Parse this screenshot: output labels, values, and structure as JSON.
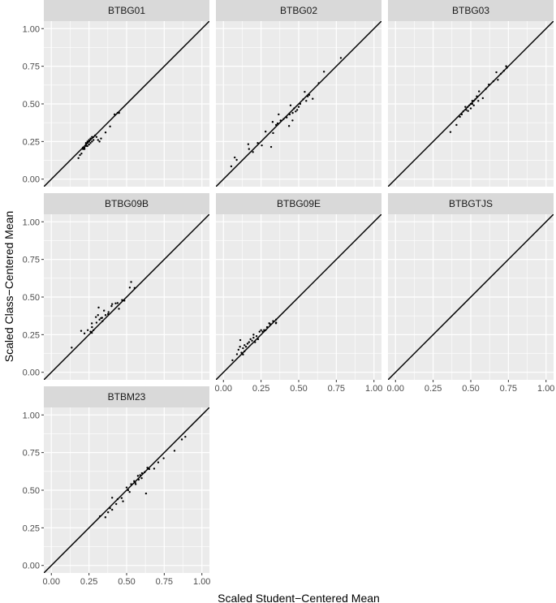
{
  "chart_data": {
    "type": "scatter",
    "xlabel": "Scaled Student−Centered Mean",
    "ylabel": "Scaled Class−Centered Mean",
    "xlim": [
      -0.05,
      1.05
    ],
    "ylim": [
      -0.05,
      1.05
    ],
    "ticks": [
      "0.00",
      "0.25",
      "0.50",
      "0.75",
      "1.00"
    ],
    "tick_values": [
      0,
      0.25,
      0.5,
      0.75,
      1
    ],
    "grid": true,
    "reference_line": "y = x",
    "colors": {
      "panel": "#EBEBEB",
      "strip": "#D9D9D9",
      "grid": "#FFFFFF",
      "point": "#000000",
      "tick_text": "#4D4D4D"
    },
    "panels": [
      {
        "name": "BTBG01",
        "points": [
          [
            0.18,
            0.14
          ],
          [
            0.19,
            0.16
          ],
          [
            0.2,
            0.17
          ],
          [
            0.21,
            0.2
          ],
          [
            0.22,
            0.21
          ],
          [
            0.23,
            0.22
          ],
          [
            0.23,
            0.23
          ],
          [
            0.24,
            0.24
          ],
          [
            0.24,
            0.22
          ],
          [
            0.25,
            0.25
          ],
          [
            0.25,
            0.26
          ],
          [
            0.26,
            0.27
          ],
          [
            0.26,
            0.24
          ],
          [
            0.27,
            0.28
          ],
          [
            0.28,
            0.26
          ],
          [
            0.29,
            0.29
          ],
          [
            0.3,
            0.28
          ],
          [
            0.31,
            0.26
          ],
          [
            0.32,
            0.25
          ],
          [
            0.33,
            0.27
          ],
          [
            0.36,
            0.31
          ],
          [
            0.39,
            0.35
          ],
          [
            0.42,
            0.43
          ],
          [
            0.44,
            0.44
          ],
          [
            0.45,
            0.44
          ],
          [
            0.22,
            0.2
          ],
          [
            0.24,
            0.25
          ],
          [
            0.27,
            0.25
          ],
          [
            0.28,
            0.28
          ],
          [
            0.21,
            0.21
          ],
          [
            0.25,
            0.23
          ],
          [
            0.23,
            0.24
          ]
        ]
      },
      {
        "name": "BTBG02",
        "points": [
          [
            0.78,
            0.805
          ],
          [
            0.668,
            0.714
          ],
          [
            0.633,
            0.638
          ],
          [
            0.54,
            0.58
          ],
          [
            0.593,
            0.534
          ],
          [
            0.446,
            0.49
          ],
          [
            0.367,
            0.43
          ],
          [
            0.327,
            0.38
          ],
          [
            0.436,
            0.353
          ],
          [
            0.459,
            0.39
          ],
          [
            0.28,
            0.316
          ],
          [
            0.33,
            0.306
          ],
          [
            0.165,
            0.232
          ],
          [
            0.228,
            0.24
          ],
          [
            0.255,
            0.224
          ],
          [
            0.317,
            0.214
          ],
          [
            0.196,
            0.18
          ],
          [
            0.17,
            0.2
          ],
          [
            0.075,
            0.144
          ],
          [
            0.088,
            0.128
          ],
          [
            0.052,
            0.085
          ],
          [
            0.47,
            0.47
          ],
          [
            0.49,
            0.46
          ],
          [
            0.5,
            0.48
          ],
          [
            0.48,
            0.45
          ],
          [
            0.51,
            0.5
          ],
          [
            0.46,
            0.44
          ],
          [
            0.44,
            0.43
          ],
          [
            0.42,
            0.41
          ],
          [
            0.4,
            0.4
          ],
          [
            0.38,
            0.39
          ],
          [
            0.36,
            0.37
          ],
          [
            0.35,
            0.36
          ],
          [
            0.55,
            0.52
          ],
          [
            0.56,
            0.55
          ],
          [
            0.53,
            0.53
          ],
          [
            0.57,
            0.56
          ]
        ]
      },
      {
        "name": "BTBG03",
        "points": [
          [
            0.365,
            0.313
          ],
          [
            0.405,
            0.36
          ],
          [
            0.428,
            0.414
          ],
          [
            0.464,
            0.48
          ],
          [
            0.482,
            0.453
          ],
          [
            0.51,
            0.52
          ],
          [
            0.555,
            0.583
          ],
          [
            0.58,
            0.538
          ],
          [
            0.62,
            0.628
          ],
          [
            0.67,
            0.71
          ],
          [
            0.68,
            0.66
          ],
          [
            0.735,
            0.75
          ],
          [
            0.49,
            0.49
          ],
          [
            0.5,
            0.5
          ],
          [
            0.51,
            0.5
          ],
          [
            0.52,
            0.52
          ],
          [
            0.53,
            0.53
          ],
          [
            0.5,
            0.47
          ],
          [
            0.48,
            0.48
          ],
          [
            0.47,
            0.46
          ],
          [
            0.52,
            0.49
          ],
          [
            0.54,
            0.55
          ],
          [
            0.55,
            0.52
          ],
          [
            0.44,
            0.43
          ],
          [
            0.45,
            0.45
          ],
          [
            0.6,
            0.6
          ],
          [
            0.65,
            0.65
          ],
          [
            0.7,
            0.7
          ],
          [
            0.72,
            0.72
          ],
          [
            0.74,
            0.74
          ]
        ]
      },
      {
        "name": "BTBG09B",
        "points": [
          [
            0.135,
            0.164
          ],
          [
            0.198,
            0.275
          ],
          [
            0.22,
            0.258
          ],
          [
            0.242,
            0.28
          ],
          [
            0.269,
            0.325
          ],
          [
            0.269,
            0.262
          ],
          [
            0.296,
            0.367
          ],
          [
            0.314,
            0.43
          ],
          [
            0.337,
            0.362
          ],
          [
            0.35,
            0.41
          ],
          [
            0.377,
            0.387
          ],
          [
            0.404,
            0.453
          ],
          [
            0.427,
            0.458
          ],
          [
            0.449,
            0.422
          ],
          [
            0.485,
            0.476
          ],
          [
            0.521,
            0.563
          ],
          [
            0.53,
            0.6
          ],
          [
            0.553,
            0.56
          ],
          [
            0.3,
            0.33
          ],
          [
            0.32,
            0.35
          ],
          [
            0.33,
            0.36
          ],
          [
            0.36,
            0.38
          ],
          [
            0.38,
            0.4
          ],
          [
            0.27,
            0.3
          ],
          [
            0.28,
            0.28
          ],
          [
            0.26,
            0.27
          ],
          [
            0.4,
            0.44
          ],
          [
            0.44,
            0.46
          ],
          [
            0.47,
            0.48
          ],
          [
            0.34,
            0.34
          ],
          [
            0.31,
            0.38
          ]
        ]
      },
      {
        "name": "BTBG09E",
        "points": [
          [
            0.112,
            0.214
          ],
          [
            0.13,
            0.118
          ],
          [
            0.349,
            0.326
          ],
          [
            0.304,
            0.326
          ],
          [
            0.1,
            0.15
          ],
          [
            0.11,
            0.17
          ],
          [
            0.12,
            0.13
          ],
          [
            0.13,
            0.16
          ],
          [
            0.14,
            0.18
          ],
          [
            0.15,
            0.17
          ],
          [
            0.16,
            0.19
          ],
          [
            0.17,
            0.2
          ],
          [
            0.18,
            0.22
          ],
          [
            0.19,
            0.21
          ],
          [
            0.2,
            0.23
          ],
          [
            0.21,
            0.2
          ],
          [
            0.22,
            0.24
          ],
          [
            0.23,
            0.22
          ],
          [
            0.24,
            0.27
          ],
          [
            0.25,
            0.28
          ],
          [
            0.26,
            0.27
          ],
          [
            0.27,
            0.28
          ],
          [
            0.28,
            0.28
          ],
          [
            0.29,
            0.3
          ],
          [
            0.31,
            0.32
          ],
          [
            0.33,
            0.34
          ],
          [
            0.35,
            0.33
          ],
          [
            0.35,
            0.35
          ],
          [
            0.06,
            0.08
          ],
          [
            0.09,
            0.12
          ],
          [
            0.14,
            0.14
          ],
          [
            0.2,
            0.25
          ]
        ]
      },
      {
        "name": "BTBGTJS",
        "points": []
      },
      {
        "name": "BTBM23",
        "points": [
          [
            0.323,
            0.327
          ],
          [
            0.359,
            0.32
          ],
          [
            0.377,
            0.353
          ],
          [
            0.404,
            0.37
          ],
          [
            0.404,
            0.45
          ],
          [
            0.431,
            0.408
          ],
          [
            0.476,
            0.426
          ],
          [
            0.467,
            0.448
          ],
          [
            0.5,
            0.518
          ],
          [
            0.52,
            0.488
          ],
          [
            0.557,
            0.55
          ],
          [
            0.575,
            0.595
          ],
          [
            0.602,
            0.613
          ],
          [
            0.629,
            0.478
          ],
          [
            0.638,
            0.649
          ],
          [
            0.683,
            0.643
          ],
          [
            0.71,
            0.685
          ],
          [
            0.746,
            0.712
          ],
          [
            0.818,
            0.762
          ],
          [
            0.867,
            0.837
          ],
          [
            0.89,
            0.855
          ],
          [
            0.55,
            0.56
          ],
          [
            0.56,
            0.54
          ],
          [
            0.58,
            0.57
          ],
          [
            0.59,
            0.6
          ],
          [
            0.6,
            0.58
          ],
          [
            0.62,
            0.62
          ],
          [
            0.65,
            0.64
          ],
          [
            0.53,
            0.54
          ],
          [
            0.51,
            0.5
          ],
          [
            0.44,
            0.44
          ],
          [
            0.39,
            0.38
          ]
        ]
      }
    ]
  }
}
